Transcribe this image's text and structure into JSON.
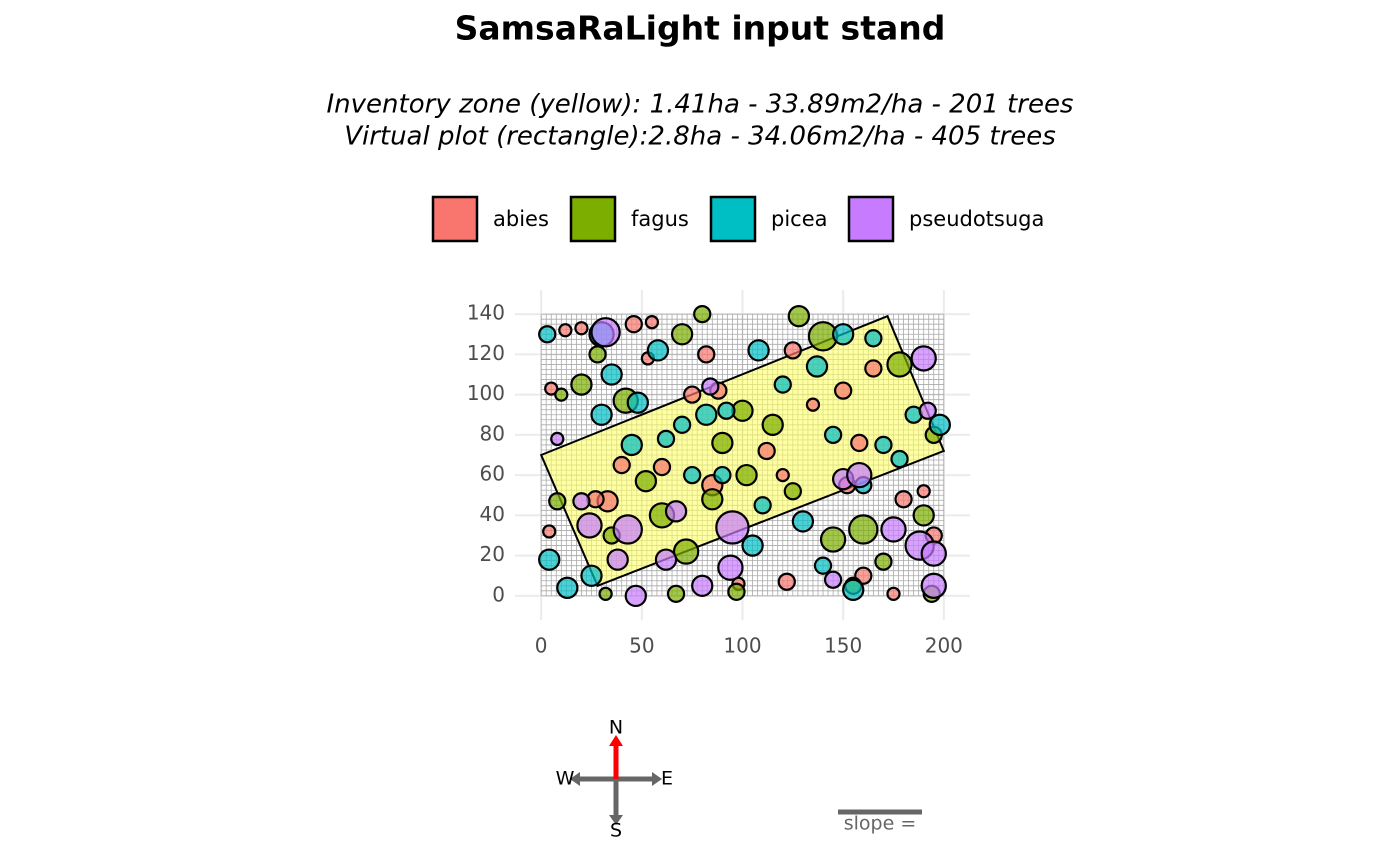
{
  "chart_data": {
    "type": "scatter",
    "title": "SamsaRaLight input stand",
    "subtitle": [
      "Inventory zone (yellow): 1.41ha - 33.89m2/ha - 201 trees",
      "Virtual plot (rectangle):2.8ha - 34.06m2/ha - 405 trees"
    ],
    "xlim": [
      -13,
      213
    ],
    "ylim": [
      -12,
      152
    ],
    "xticks": [
      0,
      50,
      100,
      150,
      200
    ],
    "yticks": [
      0,
      20,
      40,
      60,
      80,
      100,
      120,
      140
    ],
    "grid": true,
    "legend_position": "top",
    "virtual_plot": {
      "x": [
        0,
        200
      ],
      "y": [
        0,
        140
      ],
      "cell_size": 2.5
    },
    "inventory_zone": {
      "x": [
        0,
        172,
        200,
        28
      ],
      "y": [
        70,
        139,
        72,
        5
      ],
      "color": "#ffff66"
    },
    "series": [
      {
        "name": "abies",
        "color": "#F8766D",
        "x": [
          5,
          12,
          20,
          33,
          27,
          46,
          55,
          60,
          82,
          88,
          98,
          120,
          125,
          150,
          158,
          152,
          175,
          180,
          195,
          190,
          165,
          135,
          85,
          75,
          40,
          112,
          122,
          160,
          4,
          53
        ],
        "values": [
          103,
          132,
          133,
          47,
          48,
          135,
          136,
          64,
          120,
          102,
          6,
          60,
          122,
          102,
          76,
          55,
          1,
          48,
          30,
          52,
          113,
          95,
          55,
          100,
          65,
          72,
          7,
          10,
          32,
          118
        ],
        "sizes": [
          3,
          3,
          3,
          5,
          4,
          4,
          3,
          4,
          4,
          4,
          3,
          3,
          4,
          4,
          4,
          4,
          3,
          4,
          4,
          3,
          4,
          3,
          5,
          4,
          4,
          4,
          4,
          4,
          3,
          3
        ]
      },
      {
        "name": "fagus",
        "color": "#7CAE00",
        "x": [
          8,
          20,
          32,
          42,
          52,
          67,
          72,
          80,
          90,
          97,
          102,
          115,
          128,
          140,
          160,
          170,
          178,
          190,
          195,
          194,
          60,
          35,
          145,
          85,
          125,
          100,
          70,
          10,
          28,
          155
        ],
        "values": [
          47,
          105,
          1,
          97,
          57,
          1,
          22,
          140,
          76,
          2,
          60,
          85,
          139,
          129,
          33,
          17,
          115,
          40,
          80,
          1,
          40,
          30,
          28,
          48,
          52,
          92,
          130,
          100,
          120,
          5
        ],
        "sizes": [
          4,
          5,
          3,
          6,
          5,
          4,
          6,
          4,
          5,
          4,
          5,
          5,
          5,
          7,
          7,
          4,
          6,
          5,
          4,
          4,
          6,
          4,
          6,
          5,
          4,
          5,
          5,
          3,
          4,
          4
        ]
      },
      {
        "name": "picea",
        "color": "#00BFC4",
        "x": [
          3,
          4,
          13,
          25,
          30,
          35,
          48,
          58,
          62,
          70,
          82,
          90,
          105,
          108,
          120,
          130,
          137,
          140,
          150,
          155,
          170,
          185,
          198,
          178,
          160,
          110,
          92,
          45,
          30,
          75,
          145,
          165
        ],
        "values": [
          130,
          18,
          4,
          10,
          130,
          110,
          96,
          122,
          78,
          85,
          90,
          60,
          25,
          122,
          105,
          37,
          114,
          15,
          130,
          3,
          75,
          90,
          85,
          68,
          55,
          45,
          92,
          75,
          90,
          60,
          80,
          128
        ],
        "sizes": [
          4,
          5,
          5,
          5,
          6,
          5,
          5,
          5,
          4,
          4,
          5,
          4,
          5,
          5,
          4,
          5,
          5,
          4,
          5,
          5,
          4,
          4,
          5,
          4,
          4,
          4,
          4,
          5,
          5,
          4,
          4,
          4
        ]
      },
      {
        "name": "pseudotsuga",
        "color": "#C77CFF",
        "x": [
          32,
          24,
          38,
          43,
          47,
          62,
          80,
          95,
          94,
          150,
          158,
          175,
          188,
          195,
          195,
          190,
          192,
          84,
          145,
          67,
          20,
          8
        ],
        "values": [
          131,
          35,
          18,
          33,
          0,
          18,
          5,
          34,
          14,
          58,
          60,
          33,
          25,
          21,
          5,
          118,
          92,
          104,
          8,
          42,
          47,
          78
        ],
        "sizes": [
          7,
          6,
          5,
          7,
          5,
          5,
          5,
          8,
          6,
          5,
          6,
          6,
          7,
          6,
          6,
          6,
          4,
          4,
          4,
          5,
          4,
          3
        ]
      }
    ],
    "compass_labels": [
      "N",
      "E",
      "S",
      "W"
    ],
    "slope_label": "slope ="
  }
}
